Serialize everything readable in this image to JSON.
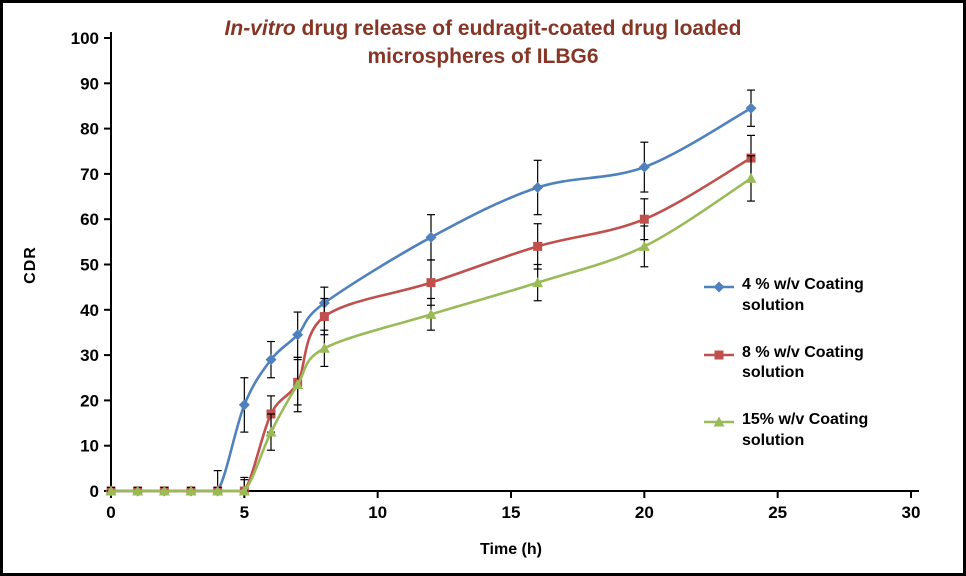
{
  "chart_data": {
    "type": "line",
    "title_italic": "In-vitro",
    "title_rest": " drug release of eudragit-coated drug loaded",
    "title_line2": "microspheres of ILBG6",
    "title_color": "#853626",
    "xlabel": "Time (h)",
    "ylabel": "CDR",
    "xlim": [
      0,
      30
    ],
    "ylim": [
      0,
      100
    ],
    "xticks": [
      0,
      5,
      10,
      15,
      20,
      25,
      30
    ],
    "yticks": [
      0,
      10,
      20,
      30,
      40,
      50,
      60,
      70,
      80,
      90,
      100
    ],
    "grid": false,
    "legend_position": "right",
    "error_bar_color": "#000000",
    "x": [
      0,
      1,
      2,
      3,
      4,
      5,
      6,
      7,
      8,
      12,
      16,
      20,
      24
    ],
    "series": [
      {
        "id": "4pct",
        "name": "4 % w/v Coating solution",
        "color": "#4F81BD",
        "marker": "diamond",
        "values": [
          0,
          0,
          0,
          0,
          0,
          19,
          29,
          34.5,
          41.5,
          56,
          67,
          71.5,
          84.5
        ],
        "errors": [
          0.8,
          0.8,
          0.8,
          0.8,
          4.5,
          6,
          4,
          5,
          3.5,
          5,
          6,
          5.5,
          4
        ]
      },
      {
        "id": "8pct",
        "name": "8 % w/v Coating solution",
        "color": "#C0504D",
        "marker": "square",
        "values": [
          0,
          0,
          0,
          0,
          0,
          0,
          17,
          24,
          38.5,
          46,
          54,
          60,
          73.5
        ],
        "errors": [
          0.8,
          0.8,
          0.8,
          0.8,
          0.8,
          3,
          4,
          5,
          4,
          5,
          5,
          4.5,
          5
        ]
      },
      {
        "id": "15pct",
        "name": "15% w/v Coating solution",
        "color": "#9BBB59",
        "marker": "triangle",
        "values": [
          0,
          0,
          0,
          0,
          0,
          0,
          13,
          23.5,
          31.5,
          39,
          46,
          54,
          69
        ],
        "errors": [
          0.8,
          0.8,
          0.8,
          0.8,
          0.8,
          2.5,
          4,
          6,
          4,
          3.5,
          4,
          4.5,
          5
        ]
      }
    ]
  }
}
